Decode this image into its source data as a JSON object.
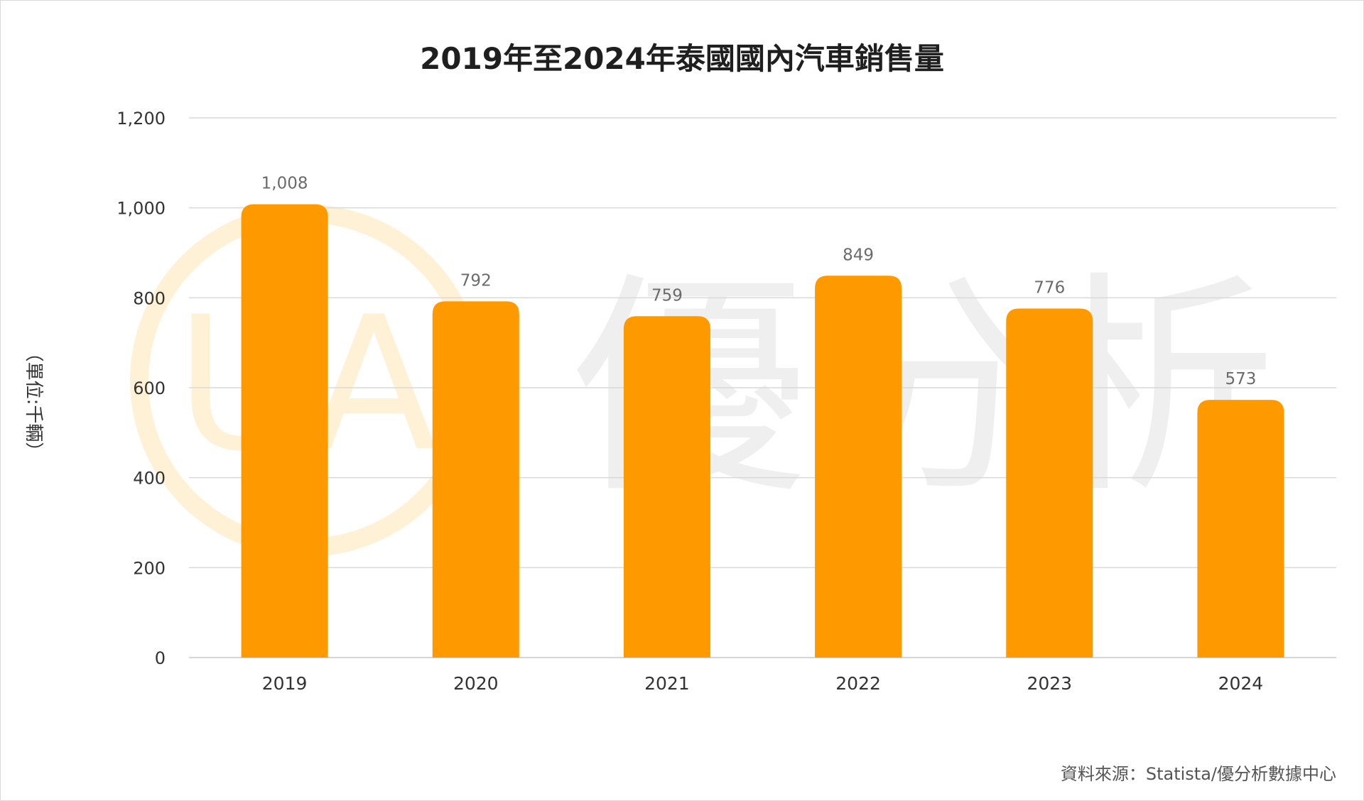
{
  "chart_data": {
    "type": "bar",
    "title": "2019年至2024年泰國國內汽車銷售量",
    "ylabel": "（單位:千輛）",
    "xlabel": "",
    "categories": [
      "2019",
      "2020",
      "2021",
      "2022",
      "2023",
      "2024"
    ],
    "values": [
      1008,
      792,
      759,
      849,
      776,
      573
    ],
    "value_labels": [
      "1,008",
      "792",
      "759",
      "849",
      "776",
      "573"
    ],
    "ylim": [
      0,
      1200
    ],
    "yticks": [
      0,
      200,
      400,
      600,
      800,
      1000,
      1200
    ],
    "ytick_labels": [
      "0",
      "200",
      "400",
      "600",
      "800",
      "1,000",
      "1,200"
    ],
    "grid": true,
    "bar_color": "#FF9900",
    "source": "資料來源：Statista/優分析數據中心"
  },
  "watermark": {
    "text": "優分析",
    "logo_text": "UA",
    "logo_color": "#FFE7B0"
  }
}
